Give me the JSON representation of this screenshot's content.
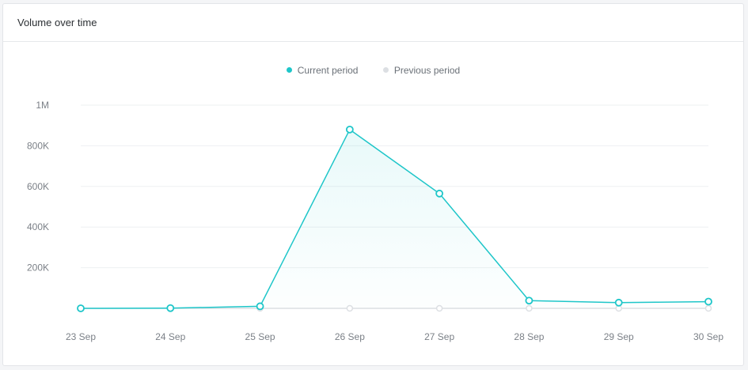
{
  "card": {
    "title": "Volume over time"
  },
  "legend": [
    {
      "label": "Current period",
      "color": "#1ec6c9"
    },
    {
      "label": "Previous period",
      "color": "#dcdfe3"
    }
  ],
  "chart_data": {
    "type": "line",
    "title": "Volume over time",
    "categories": [
      "23 Sep",
      "24 Sep",
      "25 Sep",
      "26 Sep",
      "27 Sep",
      "28 Sep",
      "29 Sep",
      "30 Sep"
    ],
    "series": [
      {
        "name": "Current period",
        "color": "#1ec6c9",
        "fill": "area",
        "values": [
          0,
          1000,
          10000,
          880000,
          565000,
          38000,
          28000,
          33000
        ]
      },
      {
        "name": "Previous period",
        "color": "#dcdfe3",
        "values": [
          0,
          0,
          0,
          0,
          0,
          0,
          0,
          0
        ]
      }
    ],
    "yticks": [
      200000,
      400000,
      600000,
      800000,
      1000000
    ],
    "ytick_labels": [
      "200K",
      "400K",
      "600K",
      "800K",
      "1M"
    ],
    "ylim": [
      0,
      1000000
    ],
    "grid": true,
    "legend_position": "top-center"
  }
}
